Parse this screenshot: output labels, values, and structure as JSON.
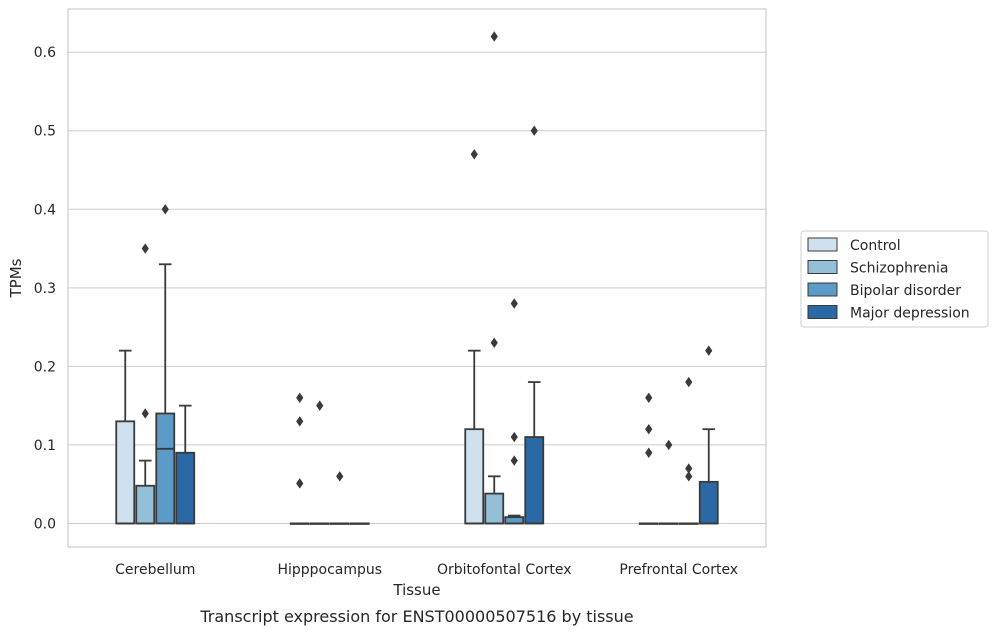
{
  "chart_data": {
    "type": "box",
    "caption": "Transcript expression for ENST00000507516 by tissue",
    "xlabel": "Tissue",
    "ylabel": "TPMs",
    "ylim": [
      -0.03,
      0.655
    ],
    "yticks": [
      0.0,
      0.1,
      0.2,
      0.3,
      0.4,
      0.5,
      0.6
    ],
    "ytick_labels": [
      "0.0",
      "0.1",
      "0.2",
      "0.3",
      "0.4",
      "0.5",
      "0.6"
    ],
    "categories": [
      "Cerebellum",
      "Hipppocampus",
      "Orbitofontal Cortex",
      "Prefrontal Cortex"
    ],
    "grid": "horizontal",
    "legend_position": "right",
    "series": [
      {
        "name": "Control",
        "color": "#cfe0ef",
        "boxes": [
          {
            "q1": 0.0,
            "median": 0.0,
            "q3": 0.13,
            "whisker_low": 0.0,
            "whisker_high": 0.22,
            "outliers": []
          },
          {
            "q1": 0.0,
            "median": 0.0,
            "q3": 0.0,
            "whisker_low": 0.0,
            "whisker_high": 0.0,
            "outliers": [
              0.16,
              0.13,
              0.051
            ]
          },
          {
            "q1": 0.0,
            "median": 0.0,
            "q3": 0.12,
            "whisker_low": 0.0,
            "whisker_high": 0.22,
            "outliers": [
              0.47
            ]
          },
          {
            "q1": 0.0,
            "median": 0.0,
            "q3": 0.0,
            "whisker_low": 0.0,
            "whisker_high": 0.0,
            "outliers": [
              0.16,
              0.12,
              0.09
            ]
          }
        ]
      },
      {
        "name": "Schizophrenia",
        "color": "#93bfd9",
        "boxes": [
          {
            "q1": 0.0,
            "median": 0.0,
            "q3": 0.048,
            "whisker_low": 0.0,
            "whisker_high": 0.08,
            "outliers": [
              0.35,
              0.14
            ]
          },
          {
            "q1": 0.0,
            "median": 0.0,
            "q3": 0.0,
            "whisker_low": 0.0,
            "whisker_high": 0.0,
            "outliers": [
              0.15
            ]
          },
          {
            "q1": 0.0,
            "median": 0.0,
            "q3": 0.038,
            "whisker_low": 0.0,
            "whisker_high": 0.06,
            "outliers": [
              0.62,
              0.23
            ]
          },
          {
            "q1": 0.0,
            "median": 0.0,
            "q3": 0.0,
            "whisker_low": 0.0,
            "whisker_high": 0.0,
            "outliers": [
              0.1
            ]
          }
        ]
      },
      {
        "name": "Bipolar disorder",
        "color": "#5a9bc8",
        "boxes": [
          {
            "q1": 0.0,
            "median": 0.095,
            "q3": 0.14,
            "whisker_low": 0.0,
            "whisker_high": 0.33,
            "outliers": [
              0.4
            ]
          },
          {
            "q1": 0.0,
            "median": 0.0,
            "q3": 0.0,
            "whisker_low": 0.0,
            "whisker_high": 0.0,
            "outliers": [
              0.06
            ]
          },
          {
            "q1": 0.0,
            "median": 0.0,
            "q3": 0.008,
            "whisker_low": 0.0,
            "whisker_high": 0.01,
            "outliers": [
              0.28,
              0.11,
              0.08
            ]
          },
          {
            "q1": 0.0,
            "median": 0.0,
            "q3": 0.0,
            "whisker_low": 0.0,
            "whisker_high": 0.0,
            "outliers": [
              0.18,
              0.07,
              0.06
            ]
          }
        ]
      },
      {
        "name": "Major depression",
        "color": "#2a68a6",
        "boxes": [
          {
            "q1": 0.0,
            "median": 0.0,
            "q3": 0.09,
            "whisker_low": 0.0,
            "whisker_high": 0.15,
            "outliers": []
          },
          {
            "q1": 0.0,
            "median": 0.0,
            "q3": 0.0,
            "whisker_low": 0.0,
            "whisker_high": 0.0,
            "outliers": []
          },
          {
            "q1": 0.0,
            "median": 0.0,
            "q3": 0.11,
            "whisker_low": 0.0,
            "whisker_high": 0.18,
            "outliers": [
              0.5
            ]
          },
          {
            "q1": 0.0,
            "median": 0.0,
            "q3": 0.053,
            "whisker_low": 0.0,
            "whisker_high": 0.12,
            "outliers": [
              0.22
            ]
          }
        ]
      }
    ]
  }
}
